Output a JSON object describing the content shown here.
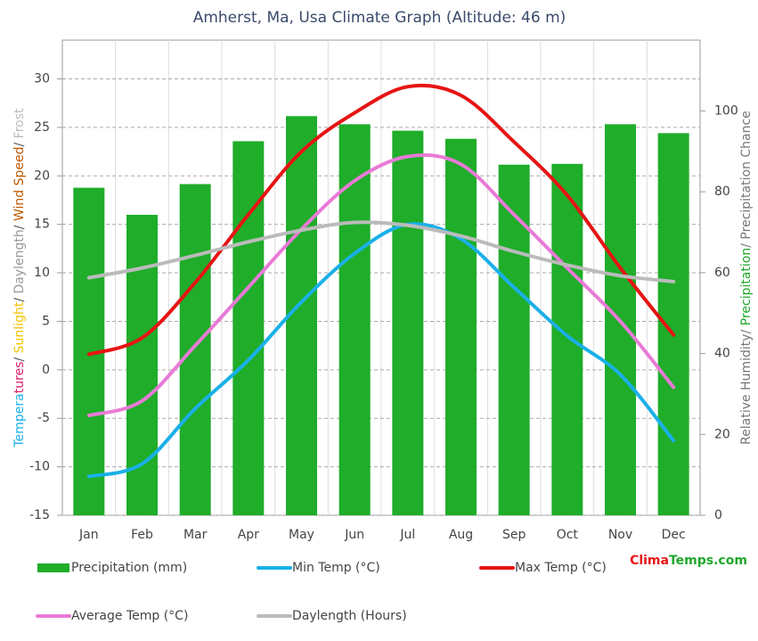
{
  "chart_data": {
    "type": "combo",
    "title": "Amherst, Ma, Usa Climate Graph (Altitude: 46 m)",
    "y_label_parts": [
      {
        "text": "Tempera",
        "color": "#1ab0e8"
      },
      {
        "text": "tures",
        "color": "#e0206a"
      },
      {
        "text": "/ ",
        "color": "#555555"
      },
      {
        "text": "Sunlight",
        "color": "#f5c400"
      },
      {
        "text": "/ ",
        "color": "#555555"
      },
      {
        "text": "Daylength",
        "color": "#999999"
      },
      {
        "text": "/ ",
        "color": "#555555"
      },
      {
        "text": "Wind Speed",
        "color": "#c05a00"
      },
      {
        "text": "/ ",
        "color": "#555555"
      },
      {
        "text": "Frost",
        "color": "#bbbbbb"
      }
    ],
    "y2_label_parts": [
      {
        "text": "Relative Humidity/ ",
        "color": "#777777"
      },
      {
        "text": "Precipitation",
        "color": "#1fa72a"
      },
      {
        "text": "/ Precipitation Chance",
        "color": "#777777"
      }
    ],
    "categories": [
      "Jan",
      "Feb",
      "Mar",
      "Apr",
      "May",
      "Jun",
      "Jul",
      "Aug",
      "Sep",
      "Oct",
      "Nov",
      "Dec"
    ],
    "ylim": [
      -15,
      34
    ],
    "yticks": [
      -15,
      -10,
      -5,
      0,
      5,
      10,
      15,
      20,
      25,
      30
    ],
    "y2lim": [
      0,
      117.5
    ],
    "y2ticks": [
      0,
      20,
      40,
      60,
      80,
      100
    ],
    "grid": true,
    "series": [
      {
        "name": "Precipitation (mm)",
        "type": "bar",
        "axis": "y2",
        "color": "#1fad2a",
        "values": [
          81,
          74.3,
          81.9,
          92.5,
          98.7,
          96.7,
          95.1,
          93.1,
          86.7,
          86.9,
          96.7,
          94.5
        ]
      },
      {
        "name": "Min Temp (°C)",
        "type": "line",
        "color": "#1ab0e8",
        "values": [
          -11,
          -9.7,
          -4,
          1,
          7,
          12,
          15,
          13.5,
          8.5,
          3.5,
          -0.5,
          -7.3
        ]
      },
      {
        "name": "Max Temp (°C)",
        "type": "line",
        "color": "#e61414",
        "values": [
          1.6,
          3.3,
          9,
          16,
          22.5,
          26.5,
          29.2,
          28.3,
          23.5,
          18,
          10.5,
          3.6
        ]
      },
      {
        "name": "Average Temp (°C)",
        "type": "line",
        "color": "#e87ad6",
        "values": [
          -4.7,
          -3.2,
          2.5,
          8.5,
          14.5,
          19.5,
          22,
          21.2,
          16,
          10.5,
          5,
          -1.8
        ]
      },
      {
        "name": "Daylength (Hours)",
        "type": "line",
        "color": "#bbbbbb",
        "values": [
          9.5,
          10.5,
          11.8,
          13.2,
          14.4,
          15.2,
          14.9,
          13.8,
          12.2,
          10.8,
          9.7,
          9.1
        ]
      }
    ],
    "brand_parts": [
      {
        "text": "Clima",
        "color": "#e61414"
      },
      {
        "text": "Temps.com",
        "color": "#1fa72a"
      }
    ]
  }
}
